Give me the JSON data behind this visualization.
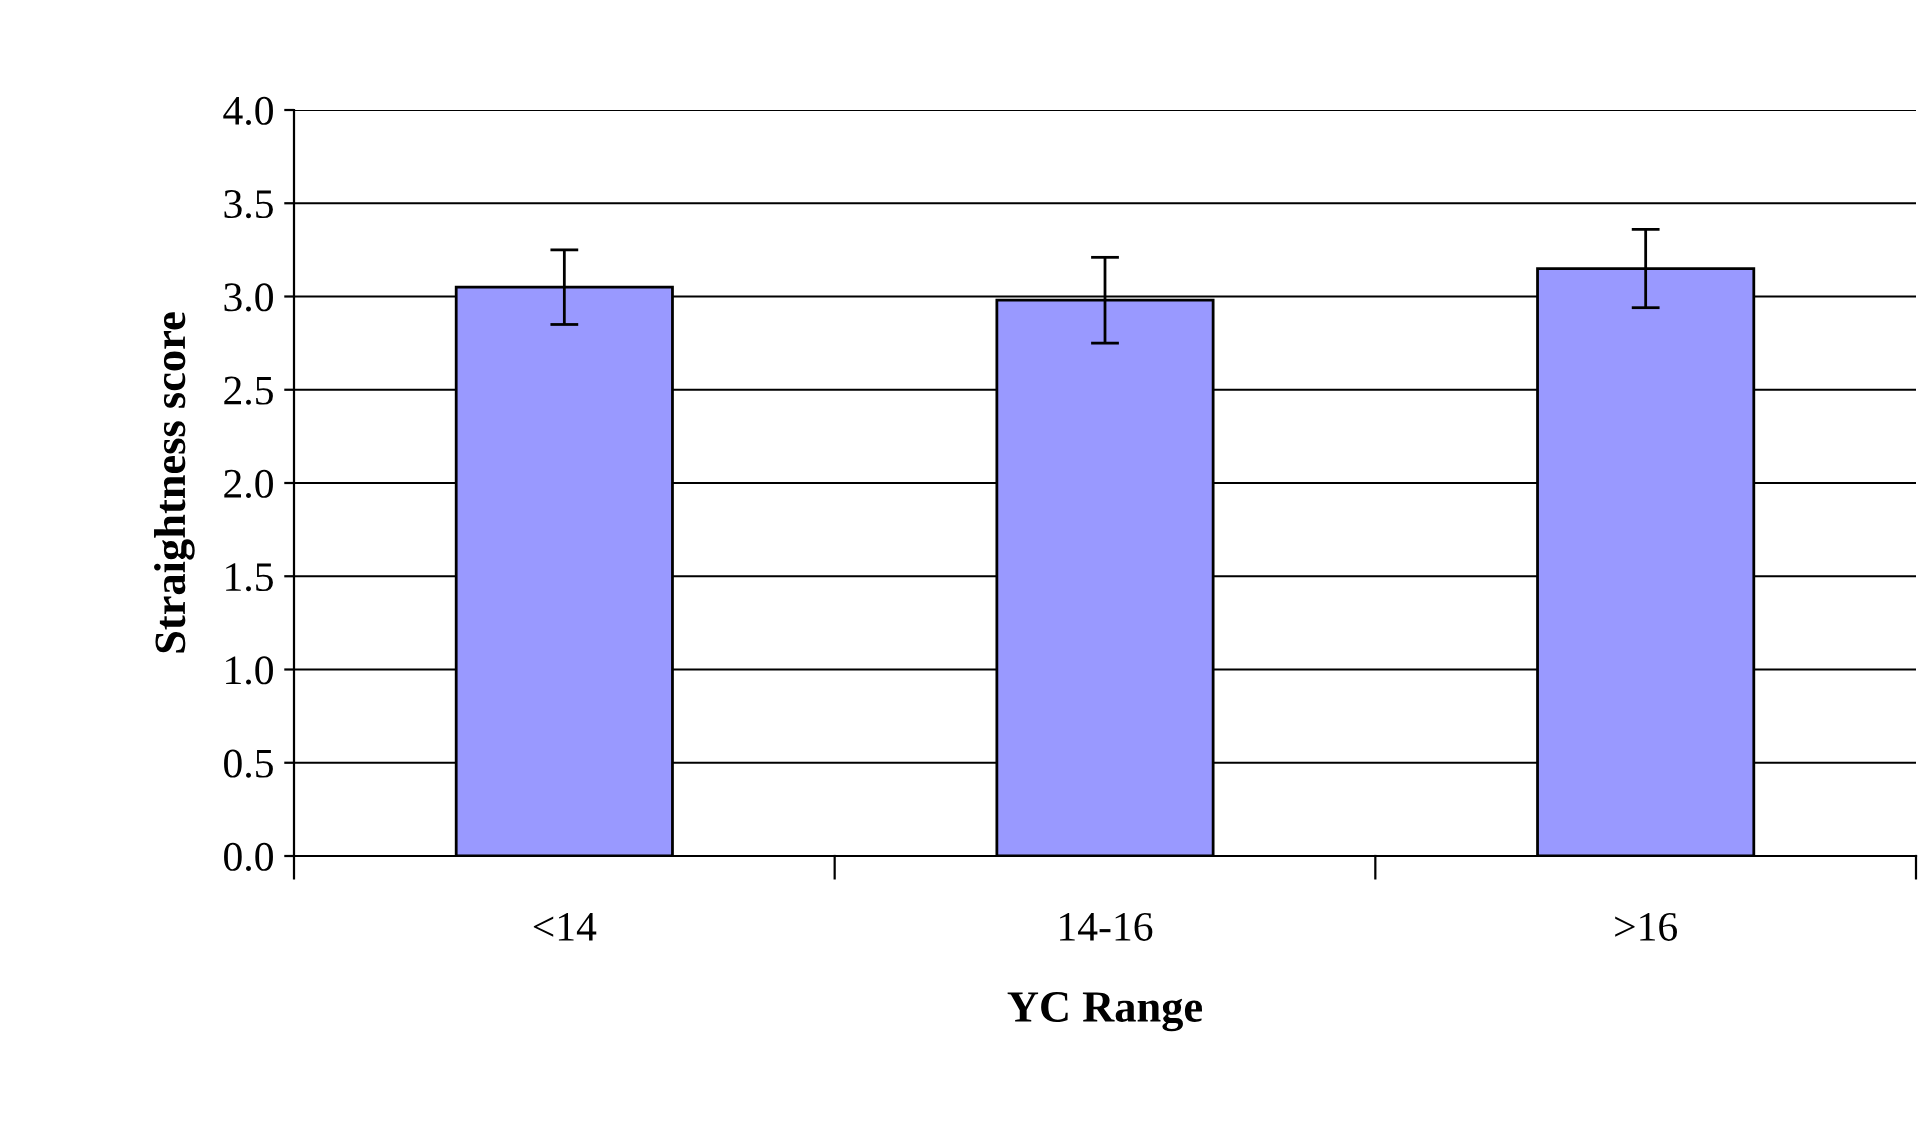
{
  "chart_data": {
    "type": "bar",
    "xlabel": "YC Range",
    "ylabel": "Straightness score",
    "categories": [
      "<14",
      "14-16",
      ">16"
    ],
    "values": [
      3.05,
      2.98,
      3.15
    ],
    "errors": [
      0.2,
      0.23,
      0.21
    ],
    "color": "#9999ff",
    "ylim": [
      0,
      4
    ],
    "yticks": [
      {
        "value": 0,
        "label": "0.0"
      },
      {
        "value": 0.5,
        "label": "0.5"
      },
      {
        "value": 1,
        "label": "1.0"
      },
      {
        "value": 1.5,
        "label": "1.5"
      },
      {
        "value": 2,
        "label": "2.0"
      },
      {
        "value": 2.5,
        "label": "2.5"
      },
      {
        "value": 3,
        "label": "3.0"
      },
      {
        "value": 3.5,
        "label": "3.5"
      },
      {
        "value": 4,
        "label": "4.0"
      }
    ],
    "grid": "y",
    "legend": false
  }
}
